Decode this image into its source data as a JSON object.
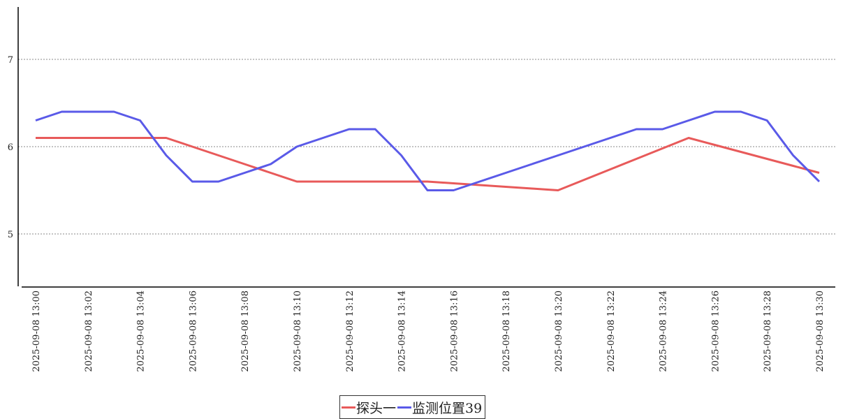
{
  "chart_data": {
    "type": "line",
    "x": [
      "2025-09-08 13:00",
      "2025-09-08 13:01",
      "2025-09-08 13:02",
      "2025-09-08 13:03",
      "2025-09-08 13:04",
      "2025-09-08 13:05",
      "2025-09-08 13:06",
      "2025-09-08 13:07",
      "2025-09-08 13:08",
      "2025-09-08 13:09",
      "2025-09-08 13:10",
      "2025-09-08 13:11",
      "2025-09-08 13:12",
      "2025-09-08 13:13",
      "2025-09-08 13:14",
      "2025-09-08 13:15",
      "2025-09-08 13:16",
      "2025-09-08 13:17",
      "2025-09-08 13:18",
      "2025-09-08 13:19",
      "2025-09-08 13:20",
      "2025-09-08 13:21",
      "2025-09-08 13:22",
      "2025-09-08 13:23",
      "2025-09-08 13:24",
      "2025-09-08 13:25",
      "2025-09-08 13:26",
      "2025-09-08 13:27",
      "2025-09-08 13:28",
      "2025-09-08 13:29",
      "2025-09-08 13:30"
    ],
    "x_tick_labels": [
      "2025-09-08 13:00",
      "2025-09-08 13:02",
      "2025-09-08 13:04",
      "2025-09-08 13:06",
      "2025-09-08 13:08",
      "2025-09-08 13:10",
      "2025-09-08 13:12",
      "2025-09-08 13:14",
      "2025-09-08 13:16",
      "2025-09-08 13:18",
      "2025-09-08 13:20",
      "2025-09-08 13:22",
      "2025-09-08 13:24",
      "2025-09-08 13:26",
      "2025-09-08 13:28",
      "2025-09-08 13:30"
    ],
    "y_ticks": [
      5,
      6,
      7
    ],
    "ylim": [
      4.4,
      7.6
    ],
    "grid": "horizontal dotted",
    "legend_position": "bottom-center",
    "series": [
      {
        "name": "探头一",
        "color": "#e85a5a",
        "values": [
          6.1,
          6.1,
          6.1,
          6.1,
          6.1,
          6.1,
          6.0,
          5.9,
          5.8,
          5.7,
          5.6,
          5.6,
          5.6,
          5.6,
          5.6,
          5.6,
          5.58,
          5.56,
          5.54,
          5.52,
          5.5,
          5.62,
          5.74,
          5.86,
          5.98,
          6.1,
          6.02,
          5.94,
          5.86,
          5.78,
          5.7
        ]
      },
      {
        "name": "监测位置39",
        "color": "#5a5ae8",
        "values": [
          6.3,
          6.4,
          6.4,
          6.4,
          6.3,
          5.9,
          5.6,
          5.6,
          5.7,
          5.8,
          6.0,
          6.1,
          6.2,
          6.2,
          5.9,
          5.5,
          5.5,
          5.6,
          5.7,
          5.8,
          5.9,
          6.0,
          6.1,
          6.2,
          6.2,
          6.3,
          6.4,
          6.4,
          6.3,
          5.9,
          5.6
        ]
      }
    ]
  }
}
